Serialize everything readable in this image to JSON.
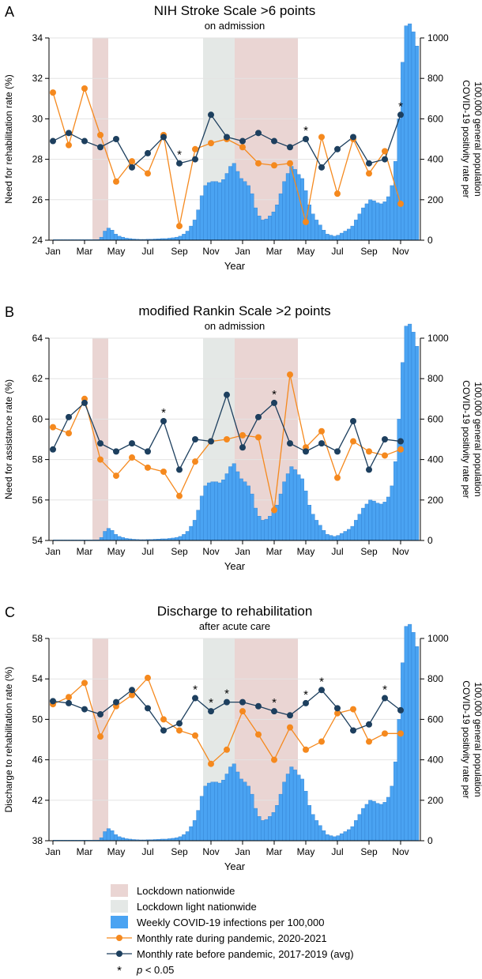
{
  "colors": {
    "lockdown": "#ead5d3",
    "lockdown_light": "#e4e8e6",
    "bars": "#4aa3f2",
    "bars_edge": "#2f7fd0",
    "pandemic": "#f5891e",
    "before": "#1d3f5e"
  },
  "chart_data": [
    {
      "panel_letter": "A",
      "type": "line",
      "title": "NIH Stroke Scale >6 points",
      "subtitle": "on admission",
      "xlabel": "Year",
      "ylabel": "Need for rehabilitation rate (%)",
      "ylabel2": [
        "COVID-19 positivity rate per",
        "100,000 general population"
      ],
      "ylim": [
        24,
        34
      ],
      "yticks": [
        24,
        26,
        28,
        30,
        32,
        34
      ],
      "y2lim": [
        0,
        1000
      ],
      "y2ticks": [
        0,
        200,
        400,
        600,
        800,
        1000
      ],
      "xticks": [
        "Jan",
        "Mar",
        "May",
        "Jul",
        "Sep",
        "Nov",
        "Jan",
        "Mar",
        "May",
        "Jul",
        "Sep",
        "Nov"
      ],
      "series": [
        {
          "name": "Monthly rate during pandemic, 2020-2021",
          "values": [
            31.3,
            28.7,
            31.5,
            29.2,
            26.9,
            27.9,
            27.3,
            29.2,
            24.7,
            28.5,
            28.8,
            29.0,
            28.6,
            27.8,
            27.7,
            27.8,
            24.9,
            29.1,
            26.3,
            29.0,
            27.3,
            28.4,
            25.8
          ]
        },
        {
          "name": "Monthly rate before pandemic, 2017-2019 (avg)",
          "values": [
            28.9,
            29.3,
            28.9,
            28.6,
            29.0,
            27.6,
            28.3,
            29.1,
            27.8,
            28.0,
            30.2,
            29.1,
            28.9,
            29.3,
            28.9,
            28.6,
            29.0,
            27.6,
            28.5,
            29.1,
            27.8,
            28.0,
            30.2
          ]
        }
      ],
      "significant_months": [
        8,
        16,
        22
      ],
      "weekly_infections": [
        0,
        0,
        0,
        0,
        0,
        0,
        0,
        0,
        0,
        0,
        0,
        0,
        0,
        15,
        45,
        60,
        50,
        30,
        20,
        15,
        10,
        8,
        6,
        5,
        4,
        4,
        5,
        5,
        6,
        7,
        8,
        8,
        10,
        12,
        15,
        20,
        30,
        45,
        70,
        100,
        150,
        220,
        270,
        285,
        290,
        290,
        285,
        300,
        330,
        365,
        380,
        340,
        305,
        290,
        270,
        230,
        160,
        120,
        100,
        105,
        120,
        140,
        175,
        230,
        290,
        330,
        365,
        350,
        325,
        305,
        245,
        175,
        130,
        100,
        75,
        50,
        30,
        25,
        20,
        25,
        35,
        45,
        55,
        70,
        100,
        130,
        160,
        180,
        200,
        195,
        185,
        180,
        190,
        215,
        270,
        390,
        600,
        880,
        1060,
        1070,
        1030,
        960
      ],
      "lockdown_months": [
        [
          2.5,
          3.5
        ],
        [
          11.5,
          15.5
        ]
      ],
      "lockdown_light_months": [
        [
          9.5,
          11.5
        ]
      ]
    },
    {
      "panel_letter": "B",
      "type": "line",
      "title": "modified Rankin Scale >2 points",
      "subtitle": "on admission",
      "xlabel": "Year",
      "ylabel": "Need for assistance rate (%)",
      "ylabel2": [
        "COVID-19 positivity rate per",
        "100,000 general population"
      ],
      "ylim": [
        54,
        64
      ],
      "yticks": [
        54,
        56,
        58,
        60,
        62,
        64
      ],
      "y2lim": [
        0,
        1000
      ],
      "y2ticks": [
        0,
        200,
        400,
        600,
        800,
        1000
      ],
      "xticks": [
        "Jan",
        "Mar",
        "May",
        "Jul",
        "Sep",
        "Nov",
        "Jan",
        "Mar",
        "May",
        "Jul",
        "Sep",
        "Nov"
      ],
      "series": [
        {
          "name": "Monthly rate during pandemic, 2020-2021",
          "values": [
            59.6,
            59.3,
            61.0,
            58.0,
            57.2,
            58.1,
            57.6,
            57.4,
            56.2,
            57.9,
            58.9,
            59.0,
            59.2,
            59.1,
            55.5,
            62.2,
            58.6,
            59.4,
            57.1,
            58.9,
            58.4,
            58.2,
            58.5
          ]
        },
        {
          "name": "Monthly rate before pandemic, 2017-2019 (avg)",
          "values": [
            58.5,
            60.1,
            60.8,
            58.8,
            58.4,
            58.8,
            58.4,
            59.9,
            57.5,
            59.0,
            58.9,
            61.2,
            58.6,
            60.1,
            60.8,
            58.8,
            58.4,
            58.8,
            58.4,
            59.9,
            57.5,
            59.0,
            58.9
          ]
        }
      ],
      "significant_months": [
        7,
        14
      ],
      "weekly_infections": [
        0,
        0,
        0,
        0,
        0,
        0,
        0,
        0,
        0,
        0,
        0,
        0,
        0,
        15,
        45,
        60,
        50,
        30,
        20,
        15,
        10,
        8,
        6,
        5,
        4,
        4,
        5,
        5,
        6,
        7,
        8,
        8,
        10,
        12,
        15,
        20,
        30,
        45,
        70,
        100,
        150,
        220,
        270,
        285,
        290,
        290,
        285,
        300,
        330,
        365,
        380,
        340,
        305,
        290,
        270,
        230,
        160,
        120,
        100,
        105,
        120,
        140,
        175,
        230,
        290,
        330,
        365,
        350,
        325,
        305,
        245,
        175,
        130,
        100,
        75,
        50,
        30,
        25,
        20,
        25,
        35,
        45,
        55,
        70,
        100,
        130,
        160,
        180,
        200,
        195,
        185,
        180,
        190,
        215,
        270,
        390,
        600,
        880,
        1060,
        1070,
        1030,
        960
      ],
      "lockdown_months": [
        [
          2.5,
          3.5
        ],
        [
          11.5,
          15.5
        ]
      ],
      "lockdown_light_months": [
        [
          9.5,
          11.5
        ]
      ]
    },
    {
      "panel_letter": "C",
      "type": "line",
      "title": "Discharge to rehabilitation",
      "subtitle": "after acute care",
      "xlabel": "Year",
      "ylabel": "Discharge to rehabilitation rate (%)",
      "ylabel2": [
        "COVID-19 positivity rate per",
        "100,000 general population"
      ],
      "ylim": [
        38,
        58
      ],
      "yticks": [
        38,
        42,
        46,
        50,
        54,
        58
      ],
      "y2lim": [
        0,
        1000
      ],
      "y2ticks": [
        0,
        200,
        400,
        600,
        800,
        1000
      ],
      "xticks": [
        "Jan",
        "Mar",
        "May",
        "Jul",
        "Sep",
        "Nov",
        "Jan",
        "Mar",
        "May",
        "Jul",
        "Sep",
        "Nov"
      ],
      "series": [
        {
          "name": "Monthly rate during pandemic, 2020-2021",
          "values": [
            51.5,
            52.2,
            53.6,
            48.3,
            51.3,
            52.4,
            54.1,
            50.0,
            48.9,
            48.4,
            45.6,
            47.0,
            50.8,
            48.5,
            46.0,
            49.2,
            47.0,
            47.8,
            50.6,
            51.0,
            47.8,
            48.6,
            48.6
          ]
        },
        {
          "name": "Monthly rate before pandemic, 2017-2019 (avg)",
          "values": [
            51.8,
            51.6,
            51.0,
            50.5,
            51.7,
            52.9,
            51.1,
            48.9,
            49.6,
            52.1,
            50.8,
            51.7,
            51.7,
            51.3,
            50.8,
            50.4,
            51.6,
            52.9,
            51.1,
            48.9,
            49.5,
            52.1,
            50.9
          ]
        }
      ],
      "significant_months": [
        9,
        10,
        11,
        14,
        16,
        17,
        21
      ],
      "weekly_infections": [
        0,
        0,
        0,
        0,
        0,
        0,
        0,
        0,
        0,
        0,
        0,
        0,
        0,
        15,
        45,
        60,
        50,
        30,
        20,
        15,
        10,
        8,
        6,
        5,
        4,
        4,
        5,
        5,
        6,
        7,
        8,
        8,
        10,
        12,
        15,
        20,
        30,
        45,
        70,
        100,
        150,
        220,
        270,
        285,
        290,
        290,
        285,
        300,
        330,
        365,
        380,
        340,
        305,
        290,
        270,
        230,
        160,
        120,
        100,
        105,
        120,
        140,
        175,
        230,
        290,
        330,
        365,
        350,
        325,
        305,
        245,
        175,
        130,
        100,
        75,
        50,
        30,
        25,
        20,
        25,
        35,
        45,
        55,
        70,
        100,
        130,
        160,
        180,
        200,
        195,
        185,
        180,
        190,
        215,
        270,
        390,
        600,
        880,
        1060,
        1070,
        1030,
        960
      ],
      "lockdown_months": [
        [
          2.5,
          3.5
        ],
        [
          11.5,
          15.5
        ]
      ],
      "lockdown_light_months": [
        [
          9.5,
          11.5
        ]
      ]
    }
  ],
  "legend": {
    "items": [
      {
        "kind": "lockdown",
        "label": "Lockdown nationwide"
      },
      {
        "kind": "lockdown_light",
        "label": "Lockdown light nationwide"
      },
      {
        "kind": "bars",
        "label": "Weekly COVID-19 infections per 100,000"
      },
      {
        "kind": "pandemic",
        "label": "Monthly rate during pandemic, 2020-2021"
      },
      {
        "kind": "before",
        "label": "Monthly rate before pandemic, 2017-2019 (avg)"
      },
      {
        "kind": "star",
        "symbol": "*",
        "label_italic": "p",
        "label_rest": " < 0.05"
      }
    ]
  }
}
